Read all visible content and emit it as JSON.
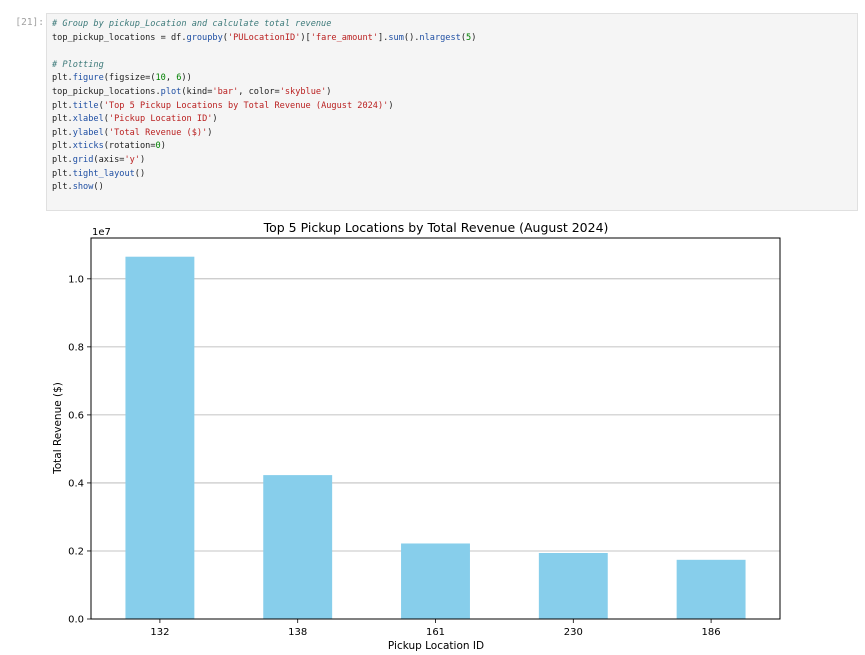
{
  "cell": {
    "prompt": "[21]:",
    "code_lines": [
      [
        {
          "t": "# Group by pickup_Location and calculate total revenue",
          "c": "c-com"
        }
      ],
      [
        {
          "t": "top_pickup_locations = df."
        },
        {
          "t": "groupby",
          "c": "c-fn"
        },
        {
          "t": "("
        },
        {
          "t": "'PULocationID'",
          "c": "c-str"
        },
        {
          "t": ")["
        },
        {
          "t": "'fare_amount'",
          "c": "c-str"
        },
        {
          "t": "]."
        },
        {
          "t": "sum",
          "c": "c-fn"
        },
        {
          "t": "()."
        },
        {
          "t": "nlargest",
          "c": "c-fn"
        },
        {
          "t": "("
        },
        {
          "t": "5",
          "c": "c-num"
        },
        {
          "t": ")"
        }
      ],
      [
        {
          "t": ""
        }
      ],
      [
        {
          "t": "# Plotting",
          "c": "c-com"
        }
      ],
      [
        {
          "t": "plt."
        },
        {
          "t": "figure",
          "c": "c-fn"
        },
        {
          "t": "(figsize=("
        },
        {
          "t": "10",
          "c": "c-num"
        },
        {
          "t": ", "
        },
        {
          "t": "6",
          "c": "c-num"
        },
        {
          "t": "))"
        }
      ],
      [
        {
          "t": "top_pickup_locations."
        },
        {
          "t": "plot",
          "c": "c-fn"
        },
        {
          "t": "(kind="
        },
        {
          "t": "'bar'",
          "c": "c-str"
        },
        {
          "t": ", color="
        },
        {
          "t": "'skyblue'",
          "c": "c-str"
        },
        {
          "t": ")"
        }
      ],
      [
        {
          "t": "plt."
        },
        {
          "t": "title",
          "c": "c-fn"
        },
        {
          "t": "("
        },
        {
          "t": "'Top 5 Pickup Locations by Total Revenue (August 2024)'",
          "c": "c-str"
        },
        {
          "t": ")"
        }
      ],
      [
        {
          "t": "plt."
        },
        {
          "t": "xlabel",
          "c": "c-fn"
        },
        {
          "t": "("
        },
        {
          "t": "'Pickup Location ID'",
          "c": "c-str"
        },
        {
          "t": ")"
        }
      ],
      [
        {
          "t": "plt."
        },
        {
          "t": "ylabel",
          "c": "c-fn"
        },
        {
          "t": "("
        },
        {
          "t": "'Total Revenue ($)'",
          "c": "c-str"
        },
        {
          "t": ")"
        }
      ],
      [
        {
          "t": "plt."
        },
        {
          "t": "xticks",
          "c": "c-fn"
        },
        {
          "t": "(rotation="
        },
        {
          "t": "0",
          "c": "c-num"
        },
        {
          "t": ")"
        }
      ],
      [
        {
          "t": "plt."
        },
        {
          "t": "grid",
          "c": "c-fn"
        },
        {
          "t": "(axis="
        },
        {
          "t": "'y'",
          "c": "c-str"
        },
        {
          "t": ")"
        }
      ],
      [
        {
          "t": "plt."
        },
        {
          "t": "tight_layout",
          "c": "c-fn"
        },
        {
          "t": "()"
        }
      ],
      [
        {
          "t": "plt."
        },
        {
          "t": "show",
          "c": "c-fn"
        },
        {
          "t": "()"
        }
      ]
    ]
  },
  "chart_data": {
    "type": "bar",
    "title": "Top 5 Pickup Locations by Total Revenue (August 2024)",
    "xlabel": "Pickup Location ID",
    "ylabel": "Total Revenue ($)",
    "y_offset_label": "1e7",
    "categories": [
      "132",
      "138",
      "161",
      "230",
      "186"
    ],
    "values": [
      10650000,
      4230000,
      2220000,
      1940000,
      1740000
    ],
    "ylim": [
      0,
      11200000
    ],
    "yticks": [
      0,
      2000000,
      4000000,
      6000000,
      8000000,
      10000000
    ],
    "ytick_labels": [
      "0.0",
      "0.2",
      "0.4",
      "0.6",
      "0.8",
      "1.0"
    ],
    "grid": "y",
    "bar_color": "#87ceeb",
    "grid_color": "#b0b0b0"
  }
}
